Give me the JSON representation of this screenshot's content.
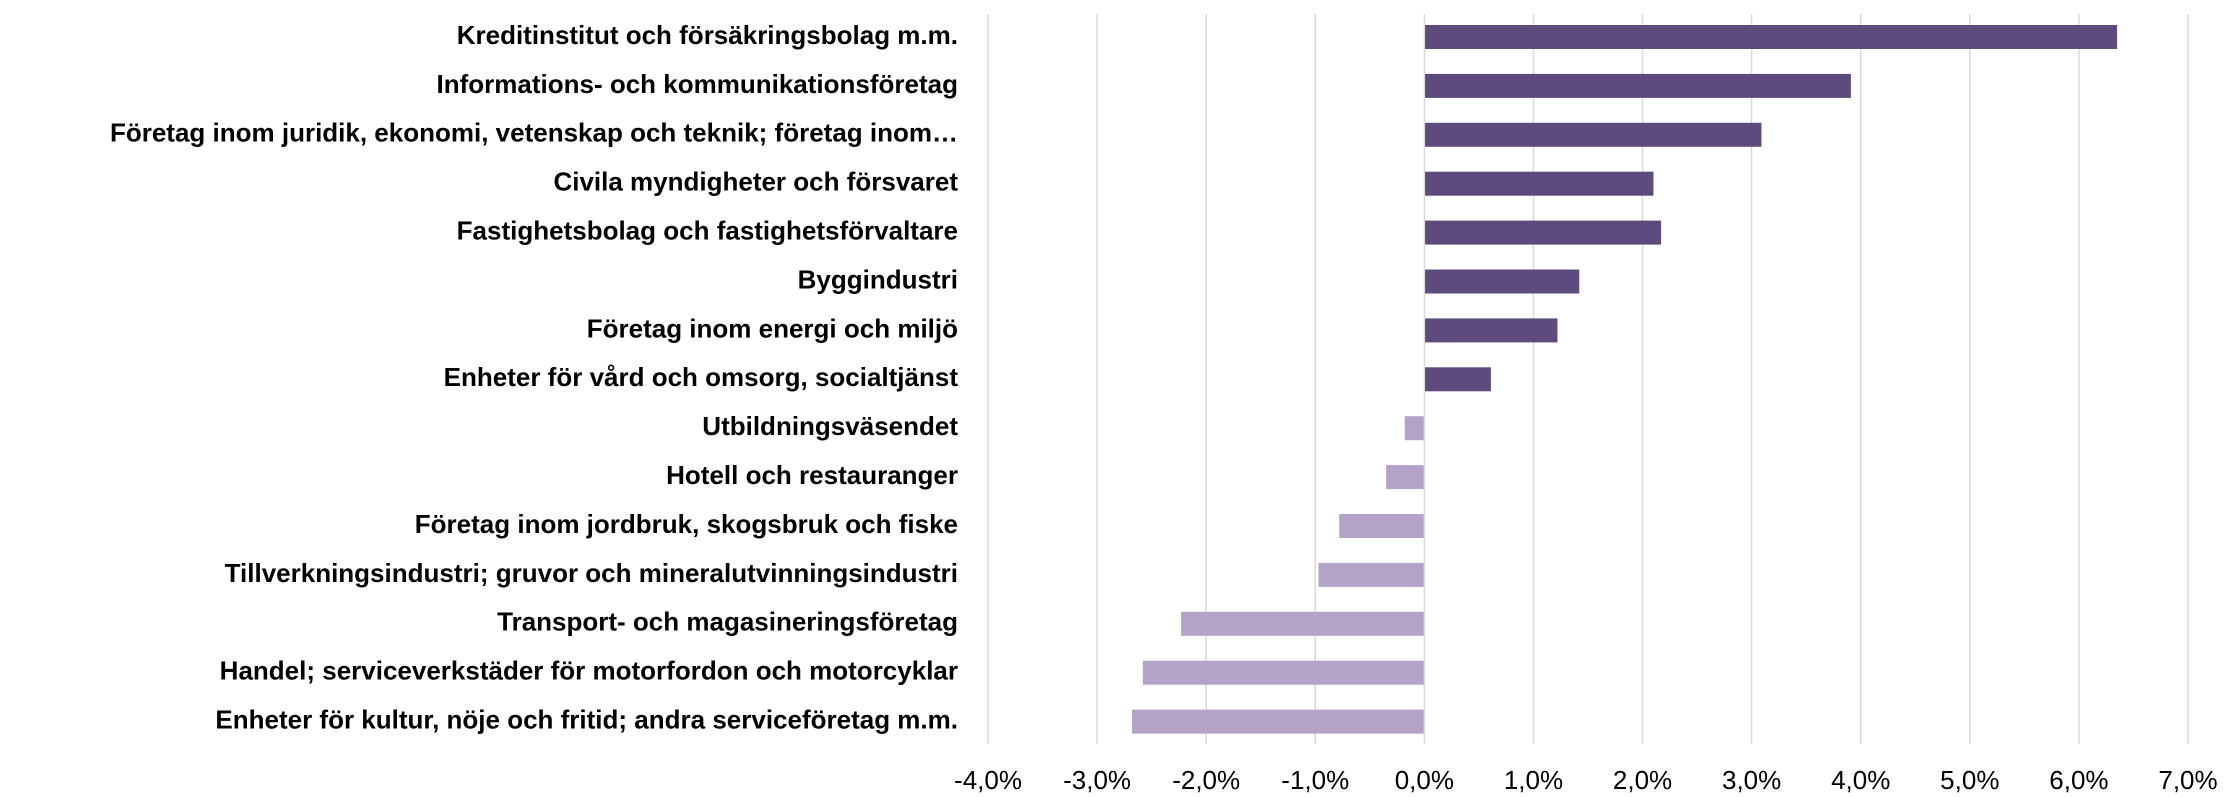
{
  "chart_data": {
    "type": "barh",
    "categories": [
      "Kreditinstitut och försäkringsbolag m.m.",
      "Informations- och kommunikationsföretag",
      "Företag inom juridik, ekonomi, vetenskap och teknik; företag inom…",
      "Civila myndigheter och försvaret",
      "Fastighetsbolag och fastighetsförvaltare",
      "Byggindustri",
      "Företag inom energi och miljö",
      "Enheter för vård och omsorg, socialtjänst",
      "Utbildningsväsendet",
      "Hotell och restauranger",
      "Företag inom jordbruk, skogsbruk och fiske",
      "Tillverkningsindustri; gruvor och mineralutvinningsindustri",
      "Transport- och magasineringsföretag",
      "Handel; serviceverkstäder för motorfordon och motorcyklar",
      "Enheter för kultur, nöje och fritid; andra serviceföretag m.m."
    ],
    "values": [
      6.35,
      3.91,
      3.09,
      2.1,
      2.17,
      1.42,
      1.22,
      0.61,
      -0.18,
      -0.35,
      -0.78,
      -0.97,
      -2.23,
      -2.58,
      -2.68
    ],
    "positive_color": "#5e4b7d",
    "negative_color": "#b3a3c9",
    "xlim": [
      -4,
      7
    ],
    "xticks": [
      {
        "value": -4,
        "label": "-4,0%"
      },
      {
        "value": -3,
        "label": "-3,0%"
      },
      {
        "value": -2,
        "label": "-2,0%"
      },
      {
        "value": -1,
        "label": "-1,0%"
      },
      {
        "value": 0,
        "label": "0,0%"
      },
      {
        "value": 1,
        "label": "1,0%"
      },
      {
        "value": 2,
        "label": "2,0%"
      },
      {
        "value": 3,
        "label": "3,0%"
      },
      {
        "value": 4,
        "label": "4,0%"
      },
      {
        "value": 5,
        "label": "5,0%"
      },
      {
        "value": 6,
        "label": "6,0%"
      },
      {
        "value": 7,
        "label": "7,0%"
      }
    ],
    "grid": true
  }
}
